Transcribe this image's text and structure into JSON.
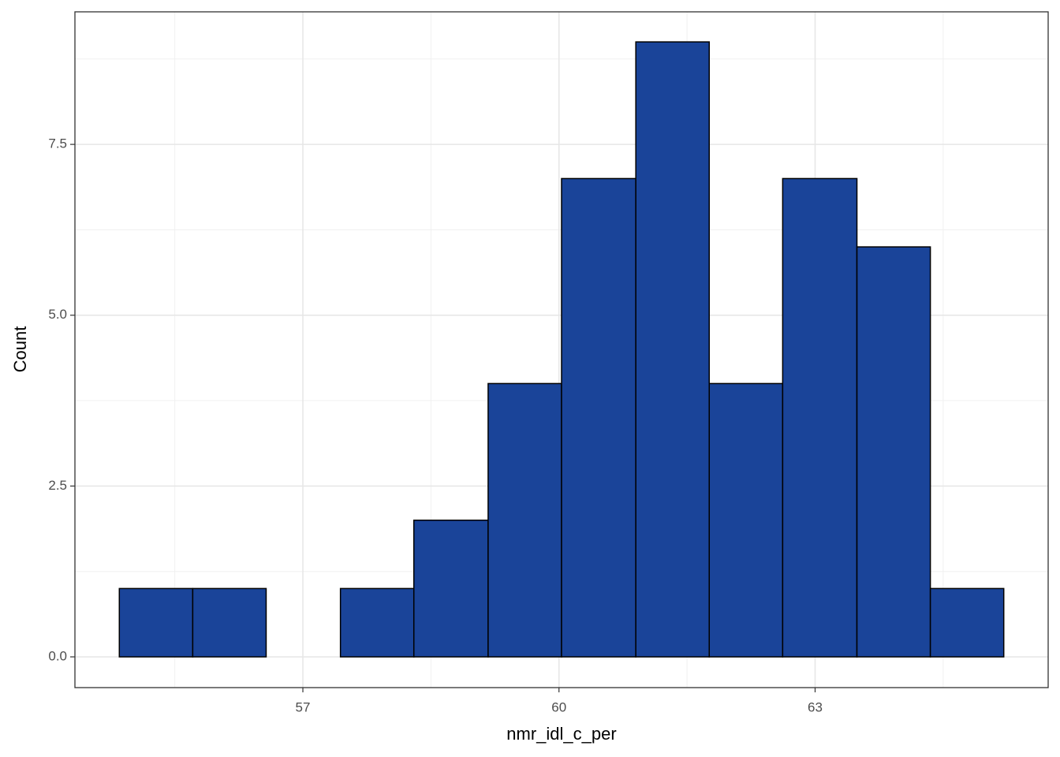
{
  "chart_data": {
    "type": "histogram",
    "x_label": "nmr_idl_c_per",
    "y_label": "Count",
    "bins": [
      54.85,
      55.71,
      56.57,
      57.44,
      58.3,
      59.17,
      60.03,
      60.9,
      61.76,
      62.62,
      63.49,
      64.35,
      65.21
    ],
    "values": [
      1,
      1,
      0,
      1,
      2,
      4,
      7,
      9,
      4,
      7,
      6,
      1
    ],
    "color": "#1a4499",
    "edge_color": "#000000",
    "xlim": [
      54.33,
      65.73
    ],
    "xticks": [
      57,
      60,
      63
    ],
    "x_minor_ticks": [
      55.5,
      58.5,
      61.5,
      64.5
    ],
    "ylim": [
      -0.45,
      9.44
    ],
    "yticks": [
      {
        "value": 0,
        "label": "0.0"
      },
      2.5,
      {
        "value": 5,
        "label": "5.0"
      },
      {
        "value": 7.5,
        "label": "7.5"
      }
    ],
    "y_minor_ticks": [
      1.25,
      3.75,
      6.25,
      8.75
    ],
    "grid": true
  }
}
